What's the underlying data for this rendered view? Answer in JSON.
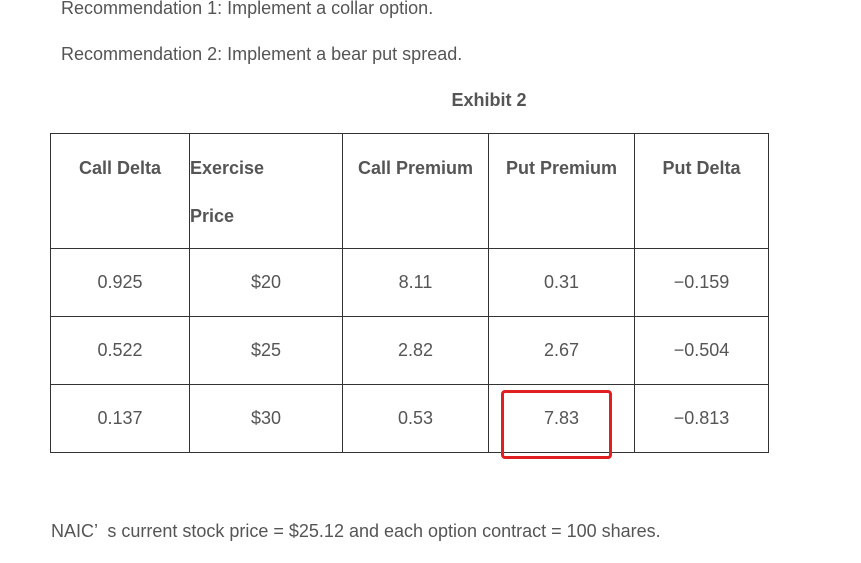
{
  "recommendations": [
    "Recommendation 1: Implement a collar option.",
    "Recommendation 2: Implement a bear put spread."
  ],
  "exhibit_title": "Exhibit 2",
  "table": {
    "headers": [
      "Call Delta",
      "Exercise",
      "Call Premium",
      "Put Premium",
      "Put Delta"
    ],
    "header_line2": "Price",
    "rows": [
      [
        "0.925",
        "$20",
        "8.11",
        "0.31",
        "−0.159"
      ],
      [
        "0.522",
        "$25",
        "2.82",
        "2.67",
        "−0.504"
      ],
      [
        "0.137",
        "$30",
        "0.53",
        "7.83",
        "−0.813"
      ]
    ],
    "highlighted_cell": "7.83",
    "highlight_color": "#e02020"
  },
  "footer": "NAIC’  s current stock price = $25.12 and each option contract = 100 shares."
}
